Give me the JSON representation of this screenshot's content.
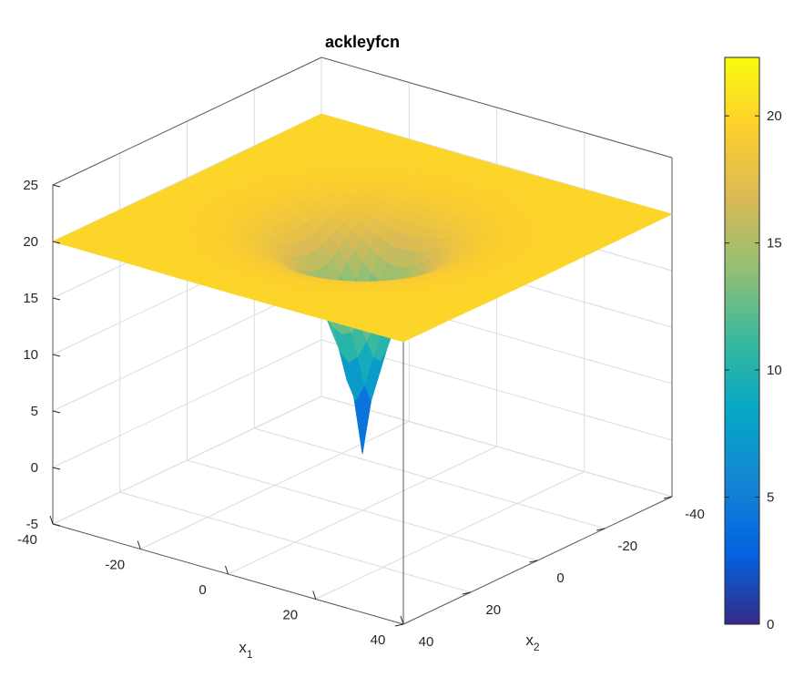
{
  "chart_data": {
    "type": "surface",
    "title": "ackleyfcn",
    "function": "ackley",
    "xlabel": {
      "base": "x",
      "sub": "1"
    },
    "ylabel": {
      "base": "x",
      "sub": "2"
    },
    "zlabel": "",
    "xlim": [
      -40,
      40
    ],
    "ylim": [
      -40,
      40
    ],
    "zlim": [
      -5,
      25
    ],
    "x_ticks": [
      -40,
      -20,
      0,
      20,
      40
    ],
    "x_tick_labels": [
      "-40",
      "-20",
      "0",
      "20",
      "40"
    ],
    "y_ticks": [
      -40,
      -20,
      0,
      20,
      40
    ],
    "y_tick_labels": [
      "-40",
      "-20",
      "0",
      "20",
      "40"
    ],
    "z_ticks": [
      -5,
      0,
      5,
      10,
      15,
      20,
      25
    ],
    "z_tick_labels": [
      "-5",
      "0",
      "5",
      "10",
      "15",
      "20",
      "25"
    ],
    "surface_summary": {
      "plateau_value": 21.7,
      "minimum_location": [
        0,
        0
      ],
      "minimum_value": 0
    },
    "colormap": "parula",
    "colorbar": {
      "range": [
        0,
        22.3
      ],
      "ticks": [
        0,
        5,
        10,
        15,
        20
      ],
      "tick_labels": [
        "0",
        "5",
        "10",
        "15",
        "20"
      ],
      "location": "right"
    },
    "grid": true,
    "colors": {
      "box": "#5a5a5a",
      "grid": "#dcdcdc",
      "text": "#262626"
    }
  }
}
